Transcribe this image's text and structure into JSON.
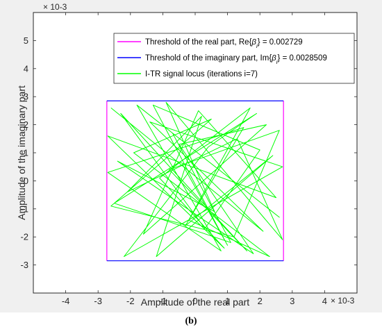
{
  "caption": "(b)",
  "chart_data": {
    "type": "line",
    "title": "",
    "xlabel": "Amplitude of the real part",
    "ylabel": "Amplitude of the imaginary part",
    "x_exponent": "× 10-3",
    "y_exponent": "× 10-3",
    "xlim": [
      -0.005,
      0.005
    ],
    "ylim": [
      -0.004,
      0.006
    ],
    "xticks": [
      -4,
      -3,
      -2,
      -1,
      0,
      1,
      2,
      3,
      4
    ],
    "yticks": [
      -3,
      -2,
      -1,
      0,
      1,
      2,
      3,
      4,
      5
    ],
    "grid": false,
    "legend_position": "top-right",
    "colors": {
      "real_threshold": "#ff00ff",
      "imag_threshold": "#0000ff",
      "locus": "#00ff00"
    },
    "series": [
      {
        "name": "Threshold of the real part, Re{βi} = 0.002729",
        "name_parts": [
          "Threshold of the real part, Re{",
          "β",
          "i",
          "} = 0.002729"
        ],
        "kind": "vertical_lines",
        "values": [
          -0.002729,
          0.002729
        ],
        "y_range": [
          -0.0028509,
          0.0028509
        ]
      },
      {
        "name": "Threshold of the imaginary part, Im{βi} = 0.0028509",
        "name_parts": [
          "Threshold of the imaginary part, Im{",
          "β",
          "i",
          "} = 0.0028509"
        ],
        "kind": "horizontal_lines",
        "values": [
          -0.0028509,
          0.0028509
        ],
        "x_range": [
          -0.002729,
          0.002729
        ]
      },
      {
        "name": "I-TR signal locus (iterations i=7)",
        "kind": "scatter_path",
        "x": [
          -0.0026,
          0.0021,
          -0.0014,
          0.0027,
          -0.0022,
          0.0004,
          0.0019,
          -0.0025,
          0.0011,
          -0.0007,
          0.0026,
          -0.0018,
          0.0008,
          -0.0027,
          0.0015,
          -0.0003,
          0.0024,
          -0.0012,
          0.0002,
          -0.0021,
          0.0013,
          0.0027,
          -0.0009,
          0.0006,
          -0.0024,
          0.0018,
          -0.0005,
          0.0022,
          -0.0016,
          0.0001,
          0.0025,
          -0.0027,
          0.0009,
          -0.0011,
          0.0017,
          -0.0002,
          0.0023,
          -0.0019,
          0.0005,
          -0.0026,
          0.0012,
          0.0026,
          -0.0008,
          0.0016,
          -0.0023,
          0.0003,
          0.002,
          -0.0013,
          0.001,
          -0.0004
        ],
        "y": [
          0.0026,
          -0.0018,
          0.0021,
          0.0005,
          -0.0027,
          0.0012,
          0.0024,
          -0.0008,
          -0.0022,
          0.0017,
          -0.0013,
          0.0027,
          -0.0025,
          0.0003,
          0.0019,
          -0.0016,
          0.0009,
          -0.0027,
          0.0023,
          -0.0004,
          0.0015,
          -0.0021,
          0.0028,
          -0.0011,
          0.0007,
          -0.0026,
          0.0013,
          0.002,
          -0.0019,
          0.0025,
          -0.0006,
          0.0016,
          -0.0024,
          0.0001,
          0.0026,
          -0.0014,
          -0.0027,
          0.001,
          0.0022,
          -0.0009,
          -0.002,
          0.0018,
          0.0004,
          -0.0025,
          0.0024,
          -0.0017,
          0.0011,
          0.0027,
          -0.0023,
          0.0006
        ]
      }
    ]
  }
}
